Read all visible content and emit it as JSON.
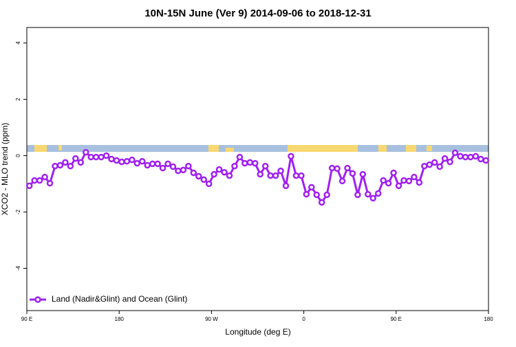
{
  "chart_data": {
    "type": "line",
    "title": "10N-15N June (Ver 9)   2014-09-06 to 2018-12-31",
    "x_label": "Longitude (deg E)",
    "y_label": "XCO2 - MLO trend (ppm)",
    "xlim": [
      90,
      540
    ],
    "ylim": [
      -5.5,
      4.55
    ],
    "xticks": [
      {
        "value": 90,
        "label": "90 E"
      },
      180,
      {
        "value": 270,
        "label": "90 W"
      },
      {
        "value": 360,
        "label": "0"
      },
      {
        "value": 450,
        "label": "90 E"
      },
      {
        "value": 540,
        "label": "180"
      }
    ],
    "yticks": [
      -4,
      -2,
      0,
      2,
      4
    ],
    "legend": "bottom-left",
    "x": [
      92.5,
      97.5,
      102.5,
      107.5,
      112.5,
      117.5,
      122.5,
      127.5,
      132.5,
      137.5,
      142.5,
      147.5,
      152.5,
      157.5,
      162.5,
      167.5,
      172.5,
      177.5,
      182.5,
      187.5,
      192.5,
      197.5,
      202.5,
      207.5,
      212.5,
      217.5,
      222.5,
      227.5,
      232.5,
      237.5,
      242.5,
      247.5,
      252.5,
      257.5,
      262.5,
      267.5,
      272.5,
      277.5,
      282.5,
      287.5,
      292.5,
      297.5,
      302.5,
      307.5,
      312.5,
      317.5,
      322.5,
      327.5,
      332.5,
      337.5,
      342.5,
      347.5,
      352.5,
      357.5,
      362.5,
      367.5,
      372.5,
      377.5,
      382.5,
      387.5,
      392.5,
      397.5,
      402.5,
      407.5,
      412.5,
      417.5,
      422.5,
      427.5,
      432.5,
      437.5,
      442.5,
      447.5,
      452.5,
      457.5,
      462.5,
      467.5,
      472.5,
      477.5,
      482.5,
      487.5,
      492.5,
      497.5,
      502.5,
      507.5,
      512.5,
      517.5,
      522.5,
      527.5,
      532.5,
      537.5
    ],
    "series": [
      {
        "name": "Land (Nadir&Glint) and Ocean (Glint)",
        "color": "#a020f0",
        "values": [
          -1.07,
          -0.88,
          -0.88,
          -0.76,
          -0.98,
          -0.37,
          -0.34,
          -0.24,
          -0.37,
          -0.1,
          -0.24,
          0.12,
          -0.05,
          -0.05,
          -0.05,
          0,
          -0.12,
          -0.17,
          -0.22,
          -0.2,
          -0.15,
          -0.27,
          -0.2,
          -0.34,
          -0.29,
          -0.29,
          -0.44,
          -0.29,
          -0.39,
          -0.54,
          -0.51,
          -0.37,
          -0.61,
          -0.73,
          -0.85,
          -1.0,
          -0.66,
          -0.49,
          -0.59,
          -0.71,
          -0.37,
          -0.05,
          -0.27,
          -0.24,
          -0.27,
          -0.66,
          -0.37,
          -0.71,
          -0.71,
          -0.54,
          -1.07,
          -0.02,
          -0.71,
          -0.71,
          -1.37,
          -1.12,
          -1.39,
          -1.66,
          -1.39,
          -0.44,
          -0.46,
          -0.9,
          -0.44,
          -0.63,
          -1.39,
          -0.66,
          -1.37,
          -1.51,
          -1.34,
          -0.88,
          -0.98,
          -0.61,
          -1.07,
          -0.88,
          -0.9,
          -0.76,
          -0.95,
          -0.37,
          -0.32,
          -0.24,
          -0.39,
          -0.1,
          -0.22,
          0.1,
          -0.02,
          -0.05,
          -0.05,
          -0.02,
          -0.12,
          -0.17
        ]
      }
    ]
  }
}
